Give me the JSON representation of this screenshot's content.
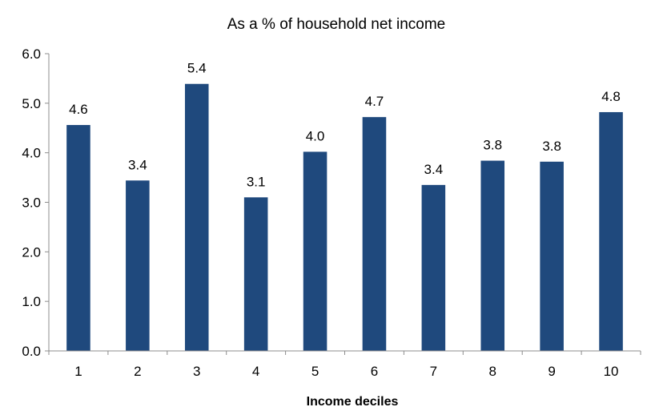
{
  "chart_data": {
    "type": "bar",
    "title": "As a % of household net income",
    "xlabel": "Income deciles",
    "ylabel": "",
    "categories": [
      "1",
      "2",
      "3",
      "4",
      "5",
      "6",
      "7",
      "8",
      "9",
      "10"
    ],
    "values": [
      4.56,
      3.44,
      5.39,
      3.1,
      4.02,
      4.72,
      3.35,
      3.84,
      3.82,
      4.82
    ],
    "data_labels": [
      "4.6",
      "3.4",
      "5.4",
      "3.1",
      "4.0",
      "4.7",
      "3.4",
      "3.8",
      "3.8",
      "4.8"
    ],
    "yticks": [
      "0.0",
      "1.0",
      "2.0",
      "3.0",
      "4.0",
      "5.0",
      "6.0"
    ],
    "ylim": [
      0,
      6
    ],
    "grid": false,
    "legend": "none",
    "bar_color": "#1f497d"
  }
}
